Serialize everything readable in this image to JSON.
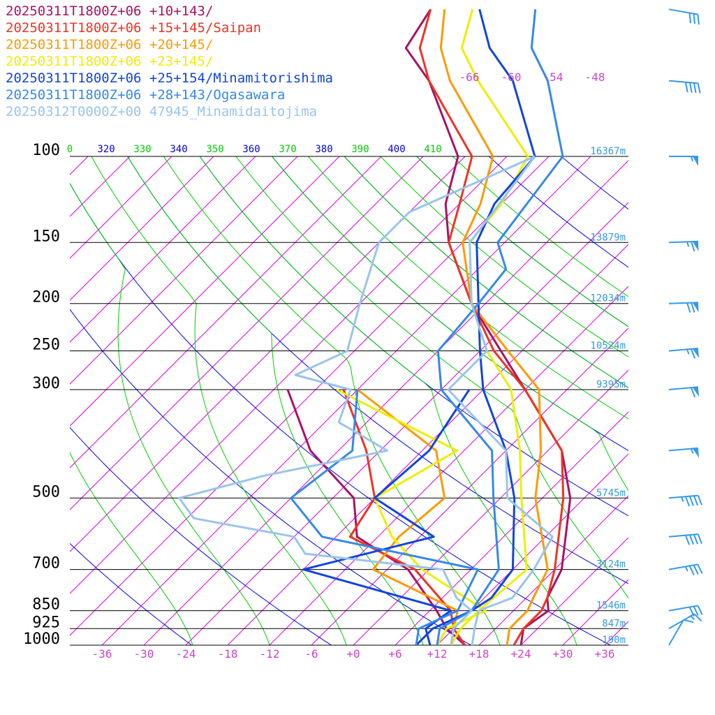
{
  "colors": {
    "isobar": "#000000",
    "isotherm": "#dd00dd",
    "dry_adiabat": "#0000ee",
    "theta_e": "#00cc00",
    "temp_tick": "#cc44cc",
    "height": "#3399dd",
    "wind": "#3399ee"
  },
  "chart_data": {
    "type": "line",
    "diagram": "skew-T log-P",
    "pressure_levels": [
      {
        "label": "100",
        "p": 100,
        "height": "16367m"
      },
      {
        "label": "150",
        "p": 150,
        "height": "13879m"
      },
      {
        "label": "200",
        "p": 200,
        "height": "12034m"
      },
      {
        "label": "250",
        "p": 250,
        "height": "10524m"
      },
      {
        "label": "300",
        "p": 300,
        "height": "9395m"
      },
      {
        "label": "500",
        "p": 500,
        "height": "5745m"
      },
      {
        "label": "700",
        "p": 700,
        "height": "3124m"
      },
      {
        "label": "850",
        "p": 850,
        "height": "1546m"
      },
      {
        "label": "925",
        "p": 925,
        "height": "847m"
      },
      {
        "label": "1000",
        "p": 1000,
        "height": "190m"
      }
    ],
    "temp_ticks": [
      "-36",
      "-30",
      "-24",
      "-18",
      "-12",
      "-6",
      "+0",
      "+6",
      "+12",
      "+18",
      "+24",
      "+30",
      "+36"
    ],
    "upper_temp_labels": [
      "-66",
      "-60",
      "-54",
      "-48"
    ],
    "theta_labels": [
      "0",
      "320",
      "330",
      "340",
      "350",
      "360",
      "370",
      "380",
      "390",
      "400",
      "410"
    ],
    "ylim": [
      1000,
      100
    ],
    "series": [
      {
        "name": "20250311T1800Z+06 +10+143/",
        "color": "#aa1166",
        "temperature": [
          [
            1000,
            24
          ],
          [
            925,
            22
          ],
          [
            850,
            23
          ],
          [
            800,
            21
          ],
          [
            700,
            19
          ],
          [
            500,
            10
          ],
          [
            400,
            2
          ],
          [
            300,
            -12
          ],
          [
            250,
            -21
          ],
          [
            200,
            -32
          ],
          [
            150,
            -44
          ],
          [
            125,
            -50
          ],
          [
            100,
            -55
          ],
          [
            70,
            -70
          ],
          [
            60,
            -78
          ],
          [
            50,
            -80
          ]
        ],
        "dewpoint": [
          [
            1000,
            16
          ],
          [
            925,
            11
          ],
          [
            850,
            7
          ],
          [
            700,
            -3
          ],
          [
            600,
            -15
          ],
          [
            500,
            -21
          ],
          [
            400,
            -34
          ],
          [
            300,
            -46
          ]
        ]
      },
      {
        "name": "20250311T1800Z+06 +15+145/Saipan",
        "color": "#ee3322",
        "temperature": [
          [
            1000,
            23
          ],
          [
            925,
            22
          ],
          [
            850,
            22
          ],
          [
            800,
            21
          ],
          [
            700,
            18
          ],
          [
            500,
            9
          ],
          [
            400,
            2
          ],
          [
            300,
            -12
          ],
          [
            250,
            -22
          ],
          [
            200,
            -32
          ],
          [
            150,
            -44
          ],
          [
            125,
            -48
          ],
          [
            100,
            -53
          ],
          [
            70,
            -70
          ],
          [
            60,
            -76
          ],
          [
            50,
            -80
          ]
        ],
        "dewpoint": [
          [
            1000,
            16
          ],
          [
            925,
            12
          ],
          [
            850,
            9
          ],
          [
            700,
            -2
          ],
          [
            600,
            -16
          ],
          [
            500,
            -18
          ],
          [
            400,
            -26
          ],
          [
            300,
            -38
          ]
        ]
      },
      {
        "name": "20250311T1800Z+06 +20+145/",
        "color": "#ff9900",
        "temperature": [
          [
            1000,
            22
          ],
          [
            925,
            20
          ],
          [
            850,
            20
          ],
          [
            800,
            19
          ],
          [
            700,
            17
          ],
          [
            500,
            5
          ],
          [
            400,
            -1
          ],
          [
            300,
            -10
          ],
          [
            250,
            -20
          ],
          [
            200,
            -32
          ],
          [
            150,
            -42
          ],
          [
            125,
            -45
          ],
          [
            100,
            -50
          ],
          [
            70,
            -67
          ],
          [
            60,
            -73
          ],
          [
            50,
            -78
          ]
        ],
        "dewpoint": [
          [
            1000,
            14
          ],
          [
            925,
            12
          ],
          [
            850,
            10
          ],
          [
            700,
            -8
          ],
          [
            600,
            -9
          ],
          [
            500,
            -8
          ],
          [
            400,
            -16
          ],
          [
            300,
            -36
          ]
        ]
      },
      {
        "name": "20250311T1800Z+06 +23+145/",
        "color": "#eeee00",
        "temperature": [
          [
            1000,
            14
          ],
          [
            925,
            13
          ],
          [
            850,
            13
          ],
          [
            700,
            14
          ],
          [
            500,
            3
          ],
          [
            400,
            -4
          ],
          [
            300,
            -14
          ],
          [
            250,
            -23
          ],
          [
            200,
            -32
          ],
          [
            150,
            -41
          ],
          [
            125,
            -42
          ],
          [
            100,
            -45
          ],
          [
            70,
            -63
          ],
          [
            60,
            -70
          ],
          [
            50,
            -74
          ]
        ],
        "dewpoint": [
          [
            1000,
            12
          ],
          [
            925,
            11
          ],
          [
            850,
            14
          ],
          [
            700,
            -1
          ],
          [
            600,
            -10
          ],
          [
            500,
            -18
          ],
          [
            400,
            -13
          ],
          [
            300,
            -39
          ]
        ]
      },
      {
        "name": "20250311T1800Z+06 +25+154/Minamitorishima",
        "color": "#1144dd",
        "temperature": [
          [
            1000,
            9
          ],
          [
            925,
            9
          ],
          [
            850,
            12
          ],
          [
            800,
            13
          ],
          [
            700,
            12
          ],
          [
            500,
            2
          ],
          [
            400,
            -6
          ],
          [
            300,
            -18
          ],
          [
            250,
            -24
          ],
          [
            200,
            -31
          ],
          [
            150,
            -40
          ],
          [
            125,
            -43
          ],
          [
            100,
            -44
          ],
          [
            70,
            -58
          ],
          [
            60,
            -66
          ],
          [
            50,
            -73
          ]
        ],
        "dewpoint": [
          [
            1000,
            11
          ],
          [
            925,
            8
          ],
          [
            850,
            9
          ],
          [
            700,
            -18
          ],
          [
            600,
            -4
          ],
          [
            500,
            -18
          ],
          [
            400,
            -17
          ],
          [
            300,
            -20
          ]
        ]
      },
      {
        "name": "20250311T1800Z+06 +28+143/Ogasawara",
        "color": "#3388ee",
        "temperature": [
          [
            1000,
            12
          ],
          [
            925,
            10
          ],
          [
            850,
            12
          ],
          [
            700,
            10
          ],
          [
            500,
            -1
          ],
          [
            400,
            -8
          ],
          [
            300,
            -24
          ],
          [
            250,
            -30
          ],
          [
            200,
            -31
          ],
          [
            170,
            -32
          ],
          [
            150,
            -37
          ],
          [
            100,
            -40
          ],
          [
            70,
            -53
          ],
          [
            60,
            -60
          ],
          [
            50,
            -65
          ]
        ],
        "dewpoint": [
          [
            1000,
            9
          ],
          [
            925,
            7
          ],
          [
            850,
            10
          ],
          [
            700,
            7
          ],
          [
            600,
            -20
          ],
          [
            500,
            -30
          ],
          [
            400,
            -28
          ],
          [
            300,
            -36
          ]
        ]
      },
      {
        "name": "20250312T0000Z+00 47945_Minamidaitojima",
        "color": "#99c4ee",
        "temperature": [
          [
            1000,
            17
          ],
          [
            925,
            15
          ],
          [
            850,
            13
          ],
          [
            800,
            16
          ],
          [
            700,
            15
          ],
          [
            600,
            13
          ],
          [
            500,
            1
          ],
          [
            400,
            -6
          ],
          [
            300,
            -23
          ],
          [
            250,
            -23
          ],
          [
            200,
            -32
          ],
          [
            150,
            -41
          ],
          [
            130,
            -42
          ],
          [
            100,
            -44
          ]
        ],
        "dewpoint": [
          [
            1000,
            14
          ],
          [
            925,
            12
          ],
          [
            850,
            12
          ],
          [
            800,
            8
          ],
          [
            700,
            2
          ],
          [
            650,
            -20
          ],
          [
            600,
            -24
          ],
          [
            550,
            -41
          ],
          [
            500,
            -46
          ],
          [
            450,
            -37
          ],
          [
            400,
            -23
          ],
          [
            350,
            -34
          ],
          [
            300,
            -37
          ],
          [
            280,
            -47
          ],
          [
            250,
            -43
          ],
          [
            200,
            -48
          ],
          [
            150,
            -54
          ],
          [
            130,
            -54
          ],
          [
            100,
            -44
          ]
        ]
      }
    ],
    "winds": [
      {
        "p": 1000,
        "kt": 10,
        "dir": 210
      },
      {
        "p": 925,
        "kt": 15,
        "dir": 240
      },
      {
        "p": 850,
        "kt": 30,
        "dir": 260
      },
      {
        "p": 700,
        "kt": 35,
        "dir": 260
      },
      {
        "p": 600,
        "kt": 40,
        "dir": 265
      },
      {
        "p": 500,
        "kt": 45,
        "dir": 265
      },
      {
        "p": 400,
        "kt": 55,
        "dir": 265
      },
      {
        "p": 300,
        "kt": 60,
        "dir": 265
      },
      {
        "p": 250,
        "kt": 65,
        "dir": 265
      },
      {
        "p": 200,
        "kt": 70,
        "dir": 268
      },
      {
        "p": 150,
        "kt": 65,
        "dir": 268
      },
      {
        "p": 100,
        "kt": 55,
        "dir": 270
      },
      {
        "p": 70,
        "kt": 40,
        "dir": 275
      },
      {
        "p": 50,
        "kt": 30,
        "dir": 280
      }
    ]
  }
}
